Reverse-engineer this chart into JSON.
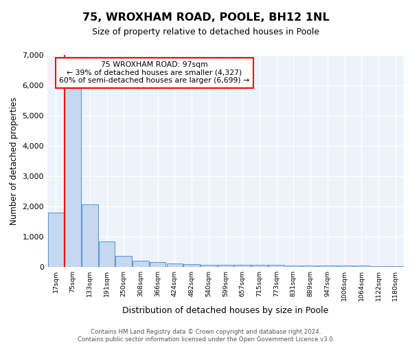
{
  "title": "75, WROXHAM ROAD, POOLE, BH12 1NL",
  "subtitle": "Size of property relative to detached houses in Poole",
  "xlabel": "Distribution of detached houses by size in Poole",
  "ylabel": "Number of detached properties",
  "categories": [
    "17sqm",
    "75sqm",
    "133sqm",
    "191sqm",
    "250sqm",
    "308sqm",
    "366sqm",
    "424sqm",
    "482sqm",
    "540sqm",
    "599sqm",
    "657sqm",
    "715sqm",
    "773sqm",
    "831sqm",
    "889sqm",
    "947sqm",
    "1006sqm",
    "1064sqm",
    "1122sqm",
    "1180sqm"
  ],
  "values": [
    1780,
    6050,
    2060,
    840,
    345,
    195,
    145,
    100,
    90,
    60,
    55,
    50,
    50,
    55,
    45,
    40,
    35,
    30,
    25,
    22,
    20
  ],
  "bar_color": "#c5d8f0",
  "bar_edge_color": "#5b9bd5",
  "red_line_index": 1,
  "annotation_title": "75 WROXHAM ROAD: 97sqm",
  "annotation_line2": "← 39% of detached houses are smaller (4,327)",
  "annotation_line3": "60% of semi-detached houses are larger (6,699) →",
  "bg_color": "#eef3fb",
  "grid_color": "#ffffff",
  "footer": "Contains HM Land Registry data © Crown copyright and database right 2024.\nContains public sector information licensed under the Open Government Licence v3.0.",
  "ylim_max": 7000,
  "yticks": [
    0,
    1000,
    2000,
    3000,
    4000,
    5000,
    6000,
    7000
  ]
}
